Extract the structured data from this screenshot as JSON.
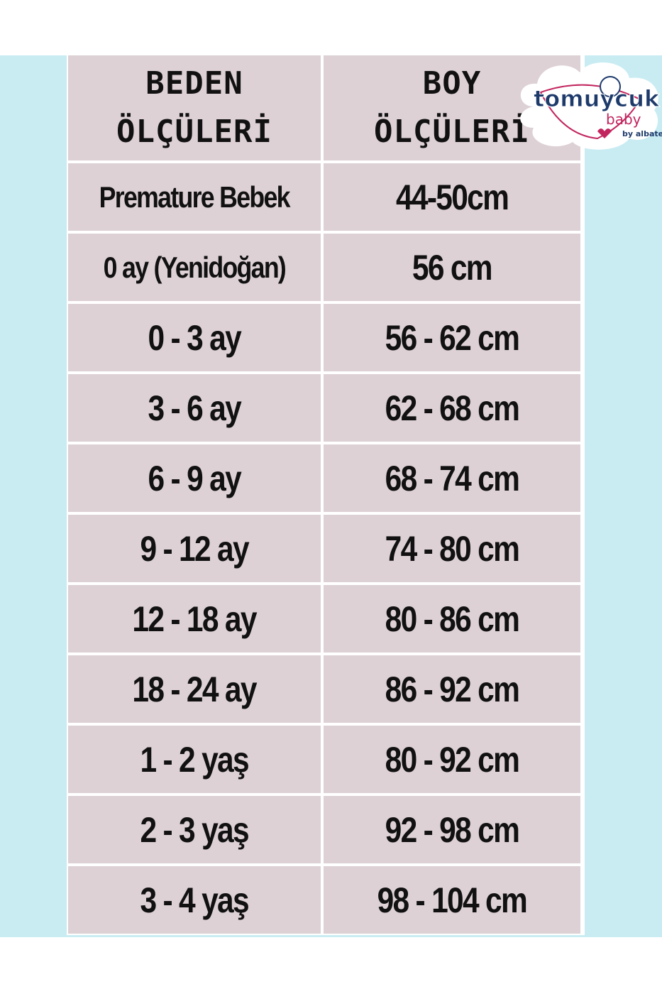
{
  "colors": {
    "background_band": "#c9ecf3",
    "cell": "#ddd1d6",
    "grid": "#ffffff",
    "text": "#111111",
    "logo_navy": "#1d3a6b",
    "logo_pink": "#c2245e"
  },
  "logo": {
    "brand": "tomuycuk",
    "sub": "baby",
    "by": "by albatek"
  },
  "table": {
    "headers": [
      {
        "line1": "BEDEN",
        "line2": "ÖLÇÜLERİ"
      },
      {
        "line1": "BOY",
        "line2": "ÖLÇÜLERİ"
      }
    ],
    "rows": [
      [
        "Premature Bebek",
        "44-50cm"
      ],
      [
        "0 ay (Yenidoğan)",
        "56 cm"
      ],
      [
        "0 - 3 ay",
        "56 - 62 cm"
      ],
      [
        "3 - 6 ay",
        "62 - 68 cm"
      ],
      [
        "6 - 9 ay",
        "68 - 74 cm"
      ],
      [
        "9 - 12 ay",
        "74 - 80 cm"
      ],
      [
        "12 - 18 ay",
        "80 - 86 cm"
      ],
      [
        "18 - 24 ay",
        "86 - 92 cm"
      ],
      [
        "1 - 2 yaş",
        "80 - 92 cm"
      ],
      [
        "2 - 3 yaş",
        "92 - 98 cm"
      ],
      [
        "3 - 4 yaş",
        "98 - 104 cm"
      ]
    ]
  }
}
